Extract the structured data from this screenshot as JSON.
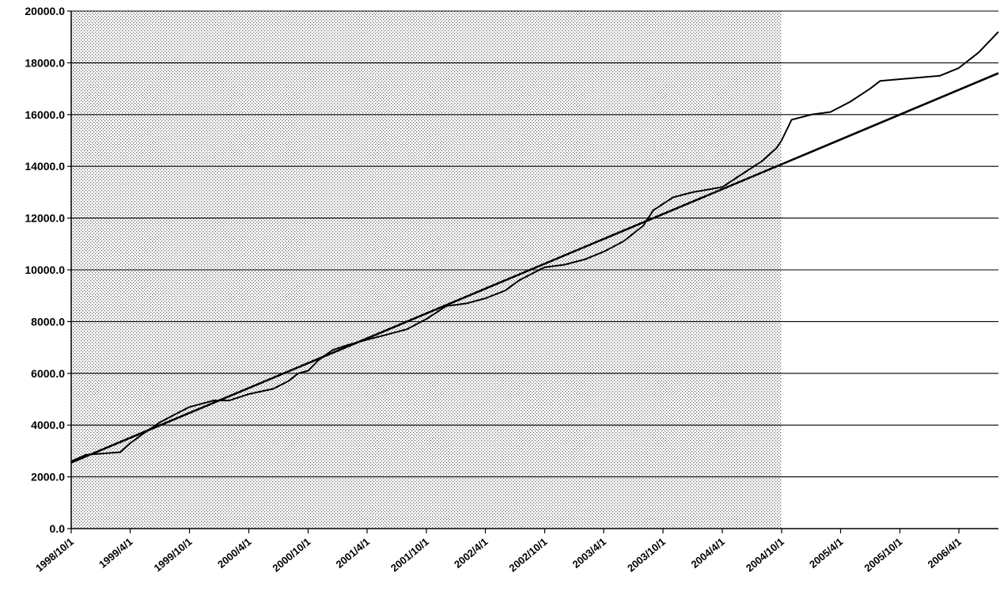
{
  "chart_data": {
    "type": "line",
    "title": "",
    "xlabel": "",
    "ylabel": "",
    "grid": true,
    "ylim": [
      0,
      20000
    ],
    "y_ticks": [
      "0.0",
      "2000.0",
      "4000.0",
      "6000.0",
      "8000.0",
      "10000.0",
      "12000.0",
      "14000.0",
      "16000.0",
      "18000.0",
      "20000.0"
    ],
    "x_ticks": [
      "1998/10/1",
      "1999/4/1",
      "1999/10/1",
      "2000/4/1",
      "2000/10/1",
      "2001/4/1",
      "2001/10/1",
      "2002/4/1",
      "2002/10/1",
      "2003/4/1",
      "2003/10/1",
      "2004/4/1",
      "2004/10/1",
      "2005/4/1",
      "2005/10/1",
      "2006/4/1"
    ],
    "x_end": "2006/8/1",
    "shaded_region": {
      "from": "1998/10/1",
      "to": "2004/10/1"
    },
    "series": [
      {
        "color": "#000000",
        "points": [
          [
            "1998/10/1",
            2600
          ],
          [
            "1998/11/15",
            2850
          ],
          [
            "1999/1/1",
            2900
          ],
          [
            "1999/3/1",
            2950
          ],
          [
            "1999/4/1",
            3300
          ],
          [
            "1999/5/15",
            3700
          ],
          [
            "1999/7/1",
            4100
          ],
          [
            "1999/8/15",
            4400
          ],
          [
            "1999/10/1",
            4700
          ],
          [
            "1999/12/15",
            4950
          ],
          [
            "2000/2/1",
            4950
          ],
          [
            "2000/4/1",
            5200
          ],
          [
            "2000/6/15",
            5400
          ],
          [
            "2000/8/1",
            5700
          ],
          [
            "2000/9/1",
            6000
          ],
          [
            "2000/10/1",
            6100
          ],
          [
            "2000/11/1",
            6500
          ],
          [
            "2000/12/15",
            6900
          ],
          [
            "2001/2/1",
            7100
          ],
          [
            "2001/4/1",
            7300
          ],
          [
            "2001/6/1",
            7500
          ],
          [
            "2001/8/1",
            7700
          ],
          [
            "2001/10/1",
            8100
          ],
          [
            "2001/12/1",
            8600
          ],
          [
            "2002/2/1",
            8700
          ],
          [
            "2002/4/1",
            8900
          ],
          [
            "2002/6/1",
            9200
          ],
          [
            "2002/7/15",
            9600
          ],
          [
            "2002/8/15",
            9800
          ],
          [
            "2002/10/1",
            10100
          ],
          [
            "2002/12/1",
            10200
          ],
          [
            "2003/2/1",
            10400
          ],
          [
            "2003/4/1",
            10700
          ],
          [
            "2003/6/1",
            11100
          ],
          [
            "2003/8/1",
            11700
          ],
          [
            "2003/9/1",
            12300
          ],
          [
            "2003/11/1",
            12800
          ],
          [
            "2004/1/1",
            13000
          ],
          [
            "2004/4/1",
            13200
          ],
          [
            "2004/6/1",
            13700
          ],
          [
            "2004/8/1",
            14200
          ],
          [
            "2004/9/15",
            14700
          ],
          [
            "2004/10/1",
            15000
          ],
          [
            "2004/11/1",
            15800
          ],
          [
            "2005/1/1",
            16000
          ],
          [
            "2005/3/1",
            16100
          ],
          [
            "2005/5/1",
            16500
          ],
          [
            "2005/7/1",
            17000
          ],
          [
            "2005/8/1",
            17300
          ],
          [
            "2005/11/1",
            17400
          ],
          [
            "2006/2/1",
            17500
          ],
          [
            "2006/4/1",
            17800
          ],
          [
            "2006/6/1",
            18400
          ],
          [
            "2006/8/1",
            19200
          ]
        ]
      },
      {
        "color": "#000000",
        "points": [
          [
            "1998/10/1",
            2550
          ],
          [
            "2006/8/1",
            17600
          ]
        ]
      }
    ]
  }
}
